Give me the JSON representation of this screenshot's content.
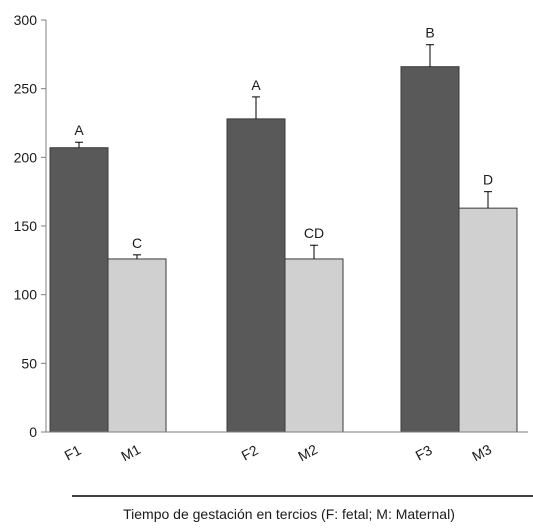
{
  "chart_data": {
    "type": "bar",
    "title": "",
    "xlabel": "Tiempo de gestación en tercios (F: fetal; M: Maternal)",
    "ylabel": "",
    "ylim": [
      0,
      300
    ],
    "yticks": [
      0,
      50,
      100,
      150,
      200,
      250,
      300
    ],
    "groups": [
      {
        "bars": [
          {
            "category": "F1",
            "value": 207,
            "error": 4,
            "letter": "A",
            "kind": "fetal"
          },
          {
            "category": "M1",
            "value": 126,
            "error": 3,
            "letter": "C",
            "kind": "maternal"
          }
        ]
      },
      {
        "bars": [
          {
            "category": "F2",
            "value": 228,
            "error": 16,
            "letter": "A",
            "kind": "fetal"
          },
          {
            "category": "M2",
            "value": 126,
            "error": 10,
            "letter": "CD",
            "kind": "maternal"
          }
        ]
      },
      {
        "bars": [
          {
            "category": "F3",
            "value": 266,
            "error": 16,
            "letter": "B",
            "kind": "fetal"
          },
          {
            "category": "M3",
            "value": 163,
            "error": 12,
            "letter": "D",
            "kind": "maternal"
          }
        ]
      }
    ],
    "colors": {
      "fetal": "#595959",
      "maternal": "#d0d0d0",
      "outline": "#3a3a3a",
      "axis": "#7f7f7f"
    },
    "grid": false,
    "legend": "none"
  }
}
